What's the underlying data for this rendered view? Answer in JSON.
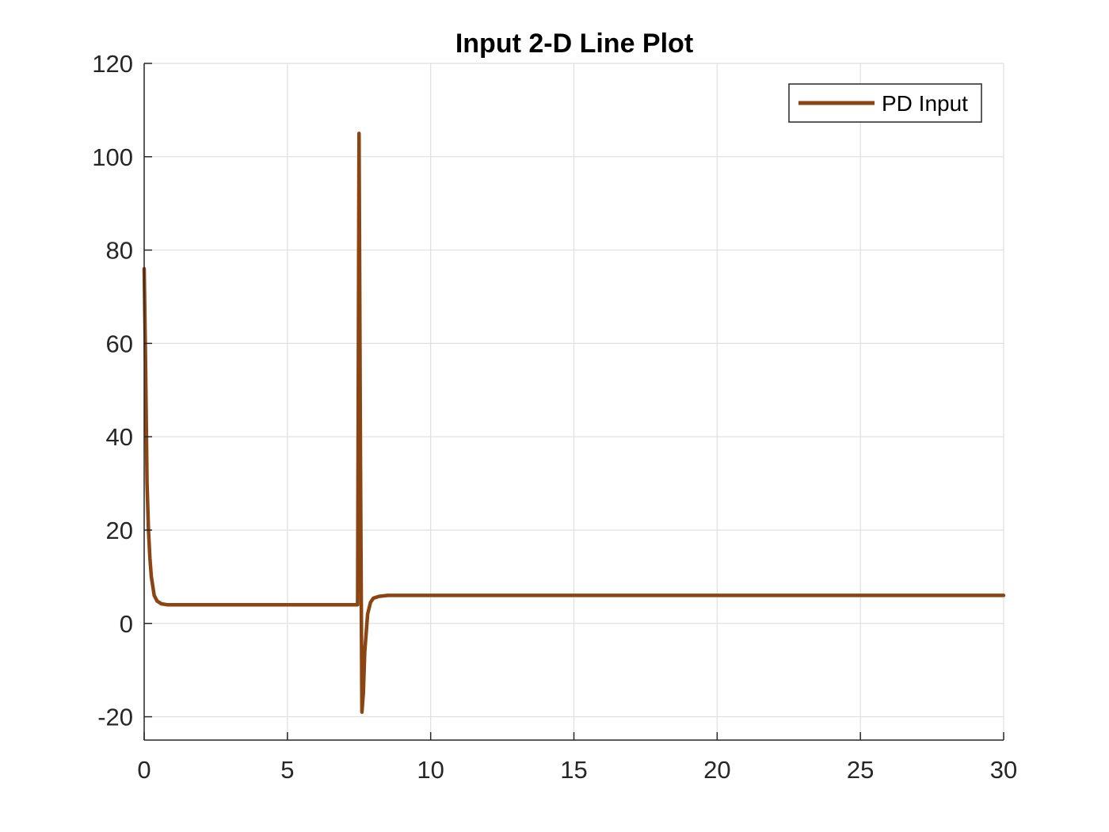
{
  "chart_data": {
    "type": "line",
    "title": "Input 2-D Line Plot",
    "xlabel": "",
    "ylabel": "",
    "xlim": [
      0,
      30
    ],
    "ylim": [
      -25,
      120
    ],
    "xticks": [
      0,
      5,
      10,
      15,
      20,
      25,
      30
    ],
    "yticks": [
      -20,
      0,
      20,
      40,
      60,
      80,
      100,
      120
    ],
    "xtick_labels": [
      "0",
      "5",
      "10",
      "15",
      "20",
      "25",
      "30"
    ],
    "ytick_labels": [
      "-20",
      "0",
      "20",
      "40",
      "60",
      "80",
      "100",
      "120"
    ],
    "grid": true,
    "legend_position": "top-right",
    "series": [
      {
        "name": "PD Input",
        "color": "#8B4513",
        "points": [
          [
            0.0,
            76
          ],
          [
            0.05,
            55
          ],
          [
            0.1,
            30
          ],
          [
            0.15,
            20
          ],
          [
            0.2,
            14
          ],
          [
            0.25,
            10
          ],
          [
            0.3,
            8
          ],
          [
            0.35,
            6
          ],
          [
            0.45,
            4.8
          ],
          [
            0.6,
            4.2
          ],
          [
            0.8,
            4.0
          ],
          [
            1.0,
            4.0
          ],
          [
            1.5,
            4.0
          ],
          [
            2.0,
            4.0
          ],
          [
            3.0,
            4.0
          ],
          [
            4.0,
            4.0
          ],
          [
            5.0,
            4.0
          ],
          [
            6.0,
            4.0
          ],
          [
            7.0,
            4.0
          ],
          [
            7.45,
            4.0
          ],
          [
            7.5,
            105
          ],
          [
            7.55,
            35
          ],
          [
            7.6,
            -19
          ],
          [
            7.65,
            -15
          ],
          [
            7.7,
            -6
          ],
          [
            7.8,
            2
          ],
          [
            7.9,
            4.5
          ],
          [
            8.0,
            5.4
          ],
          [
            8.2,
            5.8
          ],
          [
            8.5,
            6.0
          ],
          [
            9.0,
            6.0
          ],
          [
            10.0,
            6.0
          ],
          [
            12.0,
            6.0
          ],
          [
            15.0,
            6.0
          ],
          [
            18.0,
            6.0
          ],
          [
            20.0,
            6.0
          ],
          [
            22.0,
            6.0
          ],
          [
            25.0,
            6.0
          ],
          [
            28.0,
            6.0
          ],
          [
            30.0,
            6.0
          ]
        ]
      }
    ]
  }
}
